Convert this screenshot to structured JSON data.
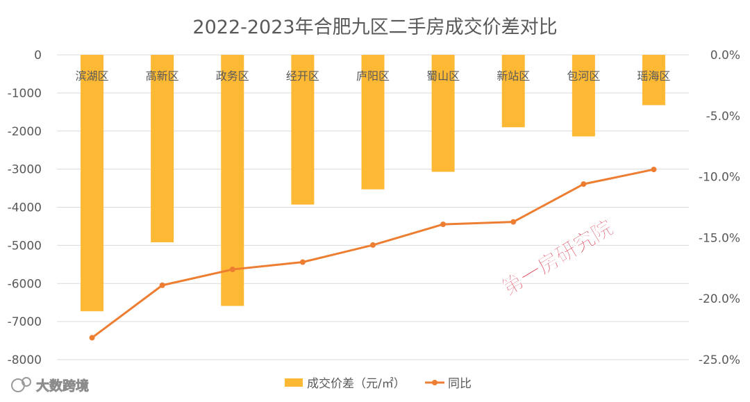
{
  "chart_data": {
    "type": "bar+line",
    "title": "2022-2023年合肥九区二手房成交价差对比",
    "categories": [
      "滨湖区",
      "高新区",
      "政务区",
      "经开区",
      "庐阳区",
      "蜀山区",
      "新站区",
      "包河区",
      "瑶海区"
    ],
    "series": [
      {
        "name": "成交价差（元/㎡）",
        "type": "bar",
        "axis": "left",
        "color": "#FDB933",
        "values": [
          -6730,
          -4920,
          -6590,
          -3930,
          -3530,
          -3070,
          -1900,
          -2140,
          -1320
        ]
      },
      {
        "name": "同比",
        "type": "line",
        "axis": "right",
        "color": "#ED7D31",
        "values": [
          -23.2,
          -18.9,
          -17.6,
          -17.0,
          -15.6,
          -13.9,
          -13.7,
          -10.6,
          -9.4
        ]
      }
    ],
    "y_left": {
      "ylim": [
        -8000,
        0
      ],
      "ticks": [
        "0",
        "-1000",
        "-2000",
        "-3000",
        "-4000",
        "-5000",
        "-6000",
        "-7000",
        "-8000"
      ]
    },
    "y_right": {
      "ylim": [
        -25.0,
        0.0
      ],
      "ticks": [
        "0.0%",
        "-5.0%",
        "-10.0%",
        "-15.0%",
        "-20.0%",
        "-25.0%"
      ]
    },
    "grid": true,
    "legend": {
      "position": "bottom",
      "items": [
        "成交价差（元/㎡）",
        "同比"
      ]
    },
    "annotation": "第一房研究院",
    "watermark": "大数跨境"
  }
}
